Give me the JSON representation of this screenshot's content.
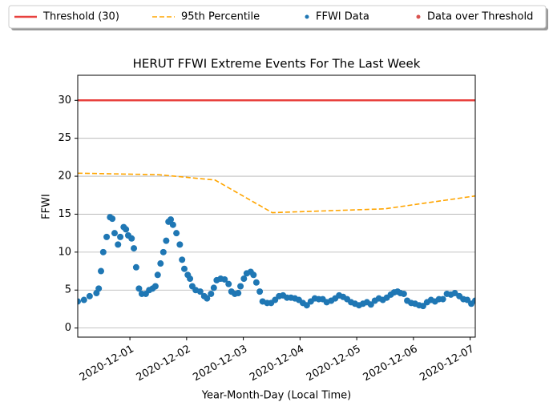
{
  "chart_data": {
    "type": "scatter",
    "title": "HERUT FFWI Extreme Events For The Last Week",
    "xlabel": "Year-Month-Day (Local Time)",
    "ylabel": "FFWI",
    "xlim": [
      -0.92,
      6.09
    ],
    "ylim": [
      -1.2,
      33.3
    ],
    "xticks": [
      {
        "value": 0,
        "label": "2020-12-01"
      },
      {
        "value": 1,
        "label": "2020-12-02"
      },
      {
        "value": 2,
        "label": "2020-12-03"
      },
      {
        "value": 3,
        "label": "2020-12-04"
      },
      {
        "value": 4,
        "label": "2020-12-05"
      },
      {
        "value": 5,
        "label": "2020-12-06"
      },
      {
        "value": 6,
        "label": "2020-12-07"
      }
    ],
    "yticks": [
      0,
      5,
      10,
      15,
      20,
      25,
      30
    ],
    "grid": "y",
    "legend": "top",
    "series": [
      {
        "name": "Threshold (30)",
        "type": "hline",
        "color": "#e8413e",
        "value": 30
      },
      {
        "name": "95th Percentile",
        "type": "line",
        "dashed": true,
        "color": "#ffa500",
        "x": [
          -0.92,
          0.51,
          1.5,
          2.51,
          4.49,
          6.09
        ],
        "values": [
          20.4,
          20.2,
          19.5,
          15.2,
          15.7,
          17.4
        ]
      },
      {
        "name": "FFWI Data",
        "type": "scatter",
        "color": "#1f77b4",
        "x": [
          -0.92,
          -0.81,
          -0.71,
          -0.59,
          -0.55,
          -0.51,
          -0.47,
          -0.41,
          -0.35,
          -0.31,
          -0.27,
          -0.21,
          -0.17,
          -0.11,
          -0.07,
          -0.03,
          0.03,
          0.07,
          0.11,
          0.16,
          0.21,
          0.28,
          0.34,
          0.4,
          0.45,
          0.49,
          0.54,
          0.59,
          0.64,
          0.68,
          0.72,
          0.76,
          0.82,
          0.88,
          0.92,
          0.96,
          1.02,
          1.06,
          1.1,
          1.16,
          1.24,
          1.31,
          1.36,
          1.43,
          1.48,
          1.53,
          1.6,
          1.67,
          1.74,
          1.79,
          1.85,
          1.91,
          1.95,
          2.01,
          2.06,
          2.13,
          2.18,
          2.23,
          2.29,
          2.34,
          2.42,
          2.49,
          2.56,
          2.63,
          2.7,
          2.77,
          2.84,
          2.91,
          2.98,
          3.05,
          3.12,
          3.19,
          3.26,
          3.33,
          3.4,
          3.47,
          3.55,
          3.62,
          3.69,
          3.76,
          3.83,
          3.9,
          3.97,
          4.04,
          4.11,
          4.18,
          4.25,
          4.32,
          4.39,
          4.46,
          4.53,
          4.6,
          4.66,
          4.72,
          4.77,
          4.83,
          4.89,
          4.96,
          5.03,
          5.1,
          5.17,
          5.24,
          5.31,
          5.38,
          5.45,
          5.52,
          5.59,
          5.66,
          5.73,
          5.81,
          5.88,
          5.95,
          6.02,
          6.09
        ],
        "values": [
          3.5,
          3.7,
          4.2,
          4.6,
          5.2,
          7.5,
          10,
          12,
          14.6,
          14.4,
          12.5,
          11,
          12,
          13.3,
          13,
          12.2,
          11.8,
          10.5,
          8,
          5.2,
          4.5,
          4.5,
          5,
          5.2,
          5.5,
          7,
          8.5,
          10,
          11.5,
          14,
          14.3,
          13.6,
          12.5,
          11,
          9,
          7.8,
          7,
          6.5,
          5.5,
          5,
          4.8,
          4.2,
          3.9,
          4.5,
          5.3,
          6.3,
          6.5,
          6.4,
          5.8,
          4.8,
          4.5,
          4.6,
          5.5,
          6.5,
          7.2,
          7.4,
          7,
          6,
          4.8,
          3.5,
          3.3,
          3.3,
          3.7,
          4.2,
          4.3,
          4,
          4,
          3.9,
          3.7,
          3.3,
          3,
          3.5,
          3.9,
          3.8,
          3.8,
          3.4,
          3.6,
          3.9,
          4.3,
          4.1,
          3.8,
          3.4,
          3.2,
          3,
          3.2,
          3.4,
          3.1,
          3.6,
          3.9,
          3.7,
          4,
          4.4,
          4.7,
          4.8,
          4.6,
          4.5,
          3.6,
          3.3,
          3.2,
          3,
          2.9,
          3.4,
          3.7,
          3.5,
          3.8,
          3.8,
          4.5,
          4.4,
          4.6,
          4.2,
          3.8,
          3.7,
          3.2,
          3.6
        ]
      },
      {
        "name": "Data over Threshold",
        "type": "scatter",
        "color": "#d9534f",
        "x": [],
        "values": []
      }
    ]
  }
}
